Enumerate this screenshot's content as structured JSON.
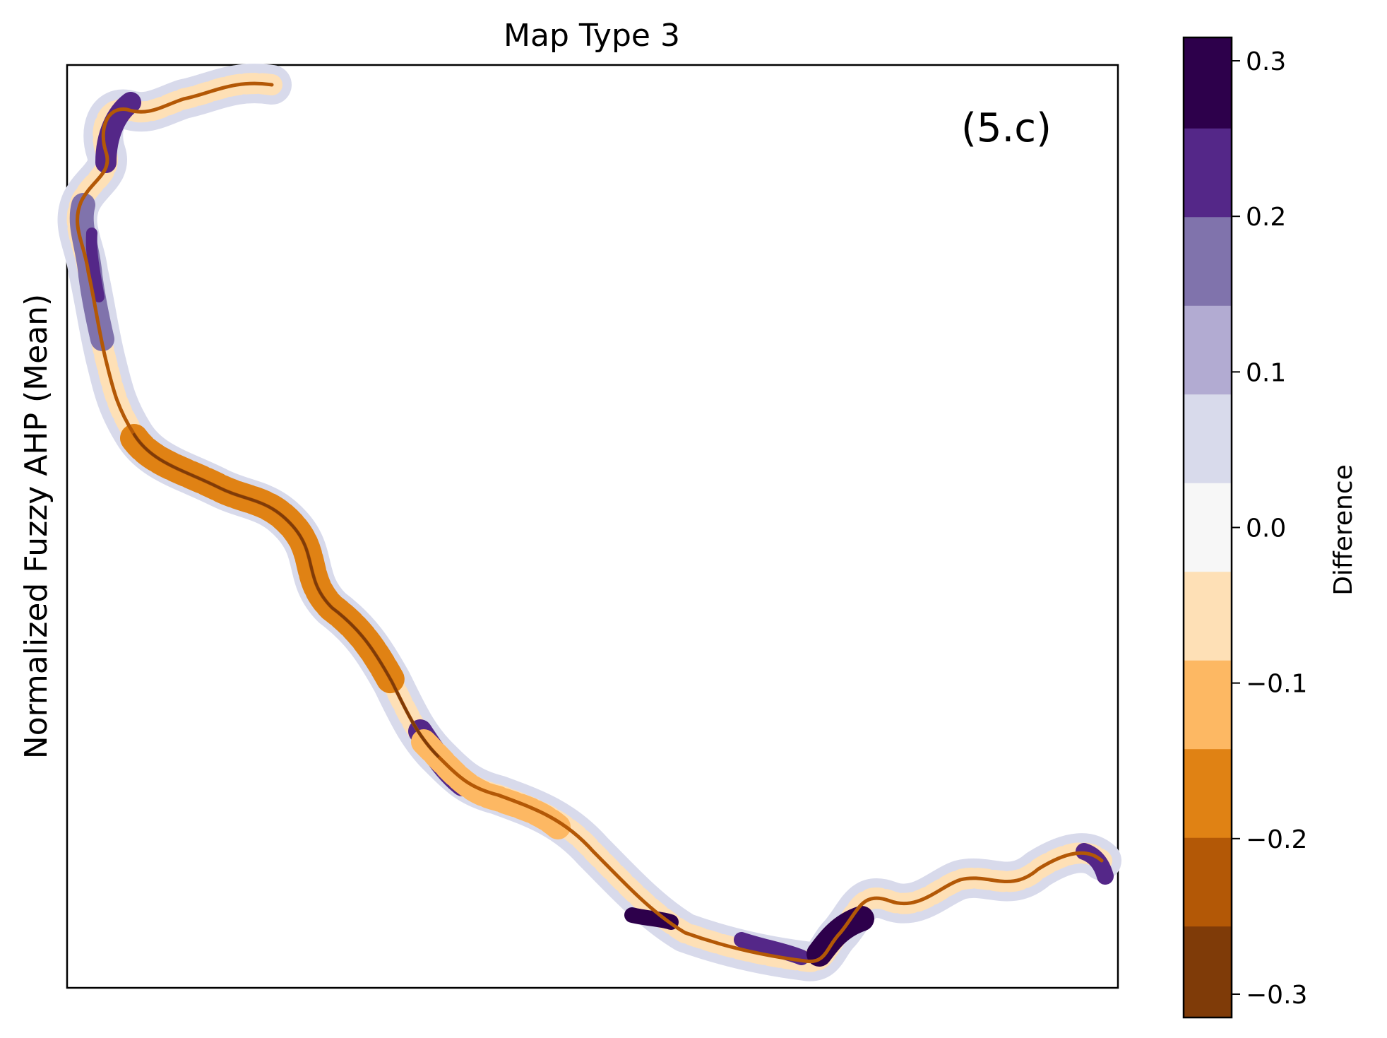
{
  "title": "Map Type 3",
  "ylabel": "Normalized Fuzzy AHP (Mean)",
  "panel_label": "(5.c)",
  "colorbar": {
    "label": "Difference",
    "range": [
      -0.315,
      0.315
    ],
    "ticks": [
      {
        "value": 0.3,
        "label": "0.3"
      },
      {
        "value": 0.2,
        "label": "0.2"
      },
      {
        "value": 0.1,
        "label": "0.1"
      },
      {
        "value": 0.0,
        "label": "0.0"
      },
      {
        "value": -0.1,
        "label": "−0.1"
      },
      {
        "value": -0.2,
        "label": "−0.2"
      },
      {
        "value": -0.3,
        "label": "−0.3"
      }
    ],
    "bins": [
      {
        "from": 0.2565,
        "to": 0.315,
        "color": "#2d004b"
      },
      {
        "from": 0.1995,
        "to": 0.2565,
        "color": "#542788"
      },
      {
        "from": 0.1425,
        "to": 0.1995,
        "color": "#8073ac"
      },
      {
        "from": 0.0855,
        "to": 0.1425,
        "color": "#b2abd2"
      },
      {
        "from": 0.0285,
        "to": 0.0855,
        "color": "#d8daeb"
      },
      {
        "from": -0.0285,
        "to": 0.0285,
        "color": "#f7f7f7"
      },
      {
        "from": -0.0855,
        "to": -0.0285,
        "color": "#fee0b6"
      },
      {
        "from": -0.1425,
        "to": -0.0855,
        "color": "#fdb863"
      },
      {
        "from": -0.1995,
        "to": -0.1425,
        "color": "#e08214"
      },
      {
        "from": -0.2565,
        "to": -0.1995,
        "color": "#b35806"
      },
      {
        "from": -0.315,
        "to": -0.2565,
        "color": "#7f3b08"
      }
    ]
  }
}
